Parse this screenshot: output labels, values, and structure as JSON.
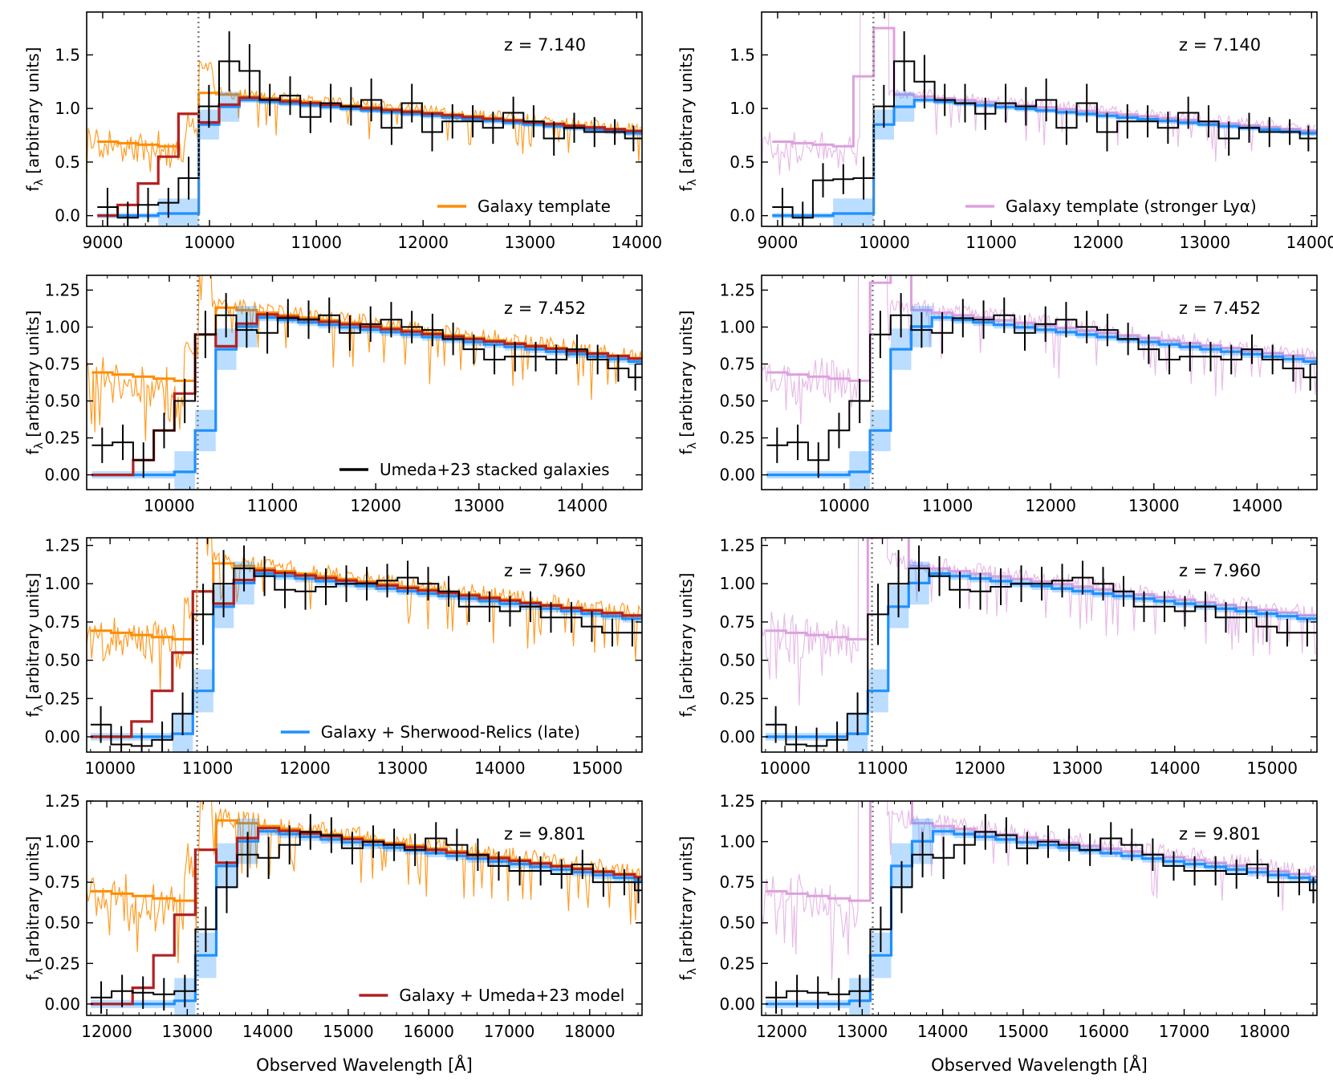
{
  "figure": {
    "ylabel": "f",
    "ylabel_sub": "λ",
    "ylabel_rest": " [arbitrary units]",
    "xlabel": "Observed Wavelength [Å]"
  },
  "colors": {
    "orange": "#ff8c00",
    "pink": "#dda0dd",
    "red": "#b22222",
    "blue": "#1e90ff",
    "blue_band": "#1e90ff",
    "black": "#000000",
    "dotted": "#808080"
  },
  "legends": [
    {
      "label": "Galaxy template",
      "color": "#ff8c00"
    },
    {
      "label": "Galaxy template (stronger Lyα)",
      "color": "#dda0dd"
    },
    {
      "label": "Umeda+23 stacked galaxies",
      "color": "#000000"
    },
    {
      "label": "Galaxy + Sherwood-Relics (late)",
      "color": "#1e90ff"
    },
    {
      "label": "Galaxy + Umeda+23 model",
      "color": "#b22222"
    }
  ],
  "chart_data": [
    {
      "type": "line",
      "row": 0,
      "col": 0,
      "redshift_label": "z = 7.140",
      "z": 7.14,
      "template": "orange",
      "show_red": true,
      "legend": 0,
      "xlim": [
        8850,
        14050
      ],
      "ylim": [
        -0.1,
        1.9
      ],
      "xticks": [
        9000,
        10000,
        11000,
        12000,
        13000,
        14000
      ],
      "xtick_labels": [
        "9000",
        "10000",
        "11000",
        "12000",
        "13000",
        "14000"
      ],
      "yticks": [
        0.0,
        0.5,
        1.0,
        1.5
      ],
      "ytick_labels": [
        "0.0",
        "0.5",
        "1.0",
        "1.5"
      ],
      "lya": 9897,
      "obs": {
        "x": [
          8950,
          9140,
          9330,
          9520,
          9710,
          9900,
          10090,
          10280,
          10470,
          10660,
          10850,
          11040,
          11230,
          11420,
          11610,
          11800,
          11990,
          12180,
          12370,
          12560,
          12750,
          12940,
          13130,
          13320,
          13510,
          13700,
          13890,
          14050
        ],
        "y": [
          0.08,
          -0.02,
          0.1,
          0.12,
          0.35,
          1.02,
          1.44,
          1.35,
          1.08,
          1.12,
          0.92,
          1.05,
          1.02,
          1.08,
          0.82,
          1.05,
          0.78,
          0.88,
          0.88,
          0.82,
          0.96,
          0.88,
          0.72,
          0.82,
          0.78,
          0.78,
          0.72,
          0.72
        ],
        "err": [
          0.18,
          0.15,
          0.16,
          0.14,
          0.2,
          0.2,
          0.28,
          0.25,
          0.15,
          0.18,
          0.15,
          0.18,
          0.18,
          0.2,
          0.16,
          0.18,
          0.18,
          0.16,
          0.15,
          0.15,
          0.15,
          0.15,
          0.16,
          0.14,
          0.14,
          0.12,
          0.12,
          0.12
        ]
      }
    },
    {
      "type": "line",
      "row": 0,
      "col": 1,
      "redshift_label": "z = 7.140",
      "z": 7.14,
      "template": "pink",
      "show_red": false,
      "legend": 1,
      "xlim": [
        8850,
        14050
      ],
      "ylim": [
        -0.1,
        1.9
      ],
      "xticks": [
        9000,
        10000,
        11000,
        12000,
        13000,
        14000
      ],
      "xtick_labels": [
        "9000",
        "10000",
        "11000",
        "12000",
        "13000",
        "14000"
      ],
      "yticks": [
        0.0,
        0.5,
        1.0,
        1.5
      ],
      "ytick_labels": [
        "0.0",
        "0.5",
        "1.0",
        "1.5"
      ],
      "lya": 9897,
      "obs": {
        "x": [
          8950,
          9140,
          9330,
          9520,
          9710,
          9900,
          10090,
          10280,
          10470,
          10660,
          10850,
          11040,
          11230,
          11420,
          11610,
          11800,
          11990,
          12180,
          12370,
          12560,
          12750,
          12940,
          13130,
          13320,
          13510,
          13700,
          13890,
          14050
        ],
        "y": [
          0.08,
          -0.02,
          0.33,
          0.34,
          0.35,
          1.02,
          1.44,
          1.25,
          1.08,
          1.05,
          0.95,
          1.05,
          1.02,
          1.08,
          0.82,
          1.05,
          0.78,
          0.88,
          0.88,
          0.82,
          0.96,
          0.88,
          0.72,
          0.82,
          0.78,
          0.78,
          0.72,
          0.72
        ],
        "err": [
          0.18,
          0.15,
          0.16,
          0.14,
          0.2,
          0.2,
          0.28,
          0.25,
          0.15,
          0.18,
          0.15,
          0.18,
          0.18,
          0.2,
          0.16,
          0.18,
          0.18,
          0.16,
          0.15,
          0.15,
          0.15,
          0.15,
          0.16,
          0.14,
          0.14,
          0.12,
          0.12,
          0.12
        ]
      }
    },
    {
      "type": "line",
      "row": 1,
      "col": 0,
      "redshift_label": "z = 7.452",
      "z": 7.452,
      "template": "orange",
      "show_red": true,
      "legend": 2,
      "xlim": [
        9200,
        14580
      ],
      "ylim": [
        -0.1,
        1.35
      ],
      "xticks": [
        10000,
        11000,
        12000,
        13000,
        14000
      ],
      "xtick_labels": [
        "10000",
        "11000",
        "12000",
        "13000",
        "14000"
      ],
      "yticks": [
        0.0,
        0.25,
        0.5,
        0.75,
        1.0,
        1.25
      ],
      "ytick_labels": [
        "0.00",
        "0.25",
        "0.50",
        "0.75",
        "1.00",
        "1.25"
      ],
      "lya": 10276,
      "obs": {
        "x": [
          9250,
          9450,
          9650,
          9850,
          10050,
          10250,
          10450,
          10650,
          10850,
          11050,
          11250,
          11450,
          11650,
          11850,
          12050,
          12250,
          12450,
          12650,
          12850,
          13050,
          13250,
          13450,
          13650,
          13850,
          14050,
          14250,
          14450,
          14580
        ],
        "y": [
          0.2,
          0.22,
          0.1,
          0.3,
          0.5,
          0.95,
          1.08,
          0.98,
          0.96,
          1.06,
          1.05,
          1.08,
          0.96,
          1.02,
          1.05,
          1.0,
          0.98,
          0.92,
          0.85,
          0.78,
          0.8,
          0.8,
          0.78,
          0.85,
          0.78,
          0.72,
          0.66,
          0.66
        ],
        "err": [
          0.12,
          0.12,
          0.12,
          0.12,
          0.15,
          0.16,
          0.15,
          0.12,
          0.14,
          0.13,
          0.13,
          0.12,
          0.12,
          0.12,
          0.12,
          0.11,
          0.11,
          0.11,
          0.1,
          0.1,
          0.1,
          0.1,
          0.1,
          0.1,
          0.1,
          0.09,
          0.09,
          0.09
        ]
      }
    },
    {
      "type": "line",
      "row": 1,
      "col": 1,
      "redshift_label": "z = 7.452",
      "z": 7.452,
      "template": "pink",
      "show_red": false,
      "legend": -1,
      "xlim": [
        9200,
        14580
      ],
      "ylim": [
        -0.1,
        1.35
      ],
      "xticks": [
        10000,
        11000,
        12000,
        13000,
        14000
      ],
      "xtick_labels": [
        "10000",
        "11000",
        "12000",
        "13000",
        "14000"
      ],
      "yticks": [
        0.0,
        0.25,
        0.5,
        0.75,
        1.0,
        1.25
      ],
      "ytick_labels": [
        "0.00",
        "0.25",
        "0.50",
        "0.75",
        "1.00",
        "1.25"
      ],
      "lya": 10276,
      "obs": {
        "x": [
          9250,
          9450,
          9650,
          9850,
          10050,
          10250,
          10450,
          10650,
          10850,
          11050,
          11250,
          11450,
          11650,
          11850,
          12050,
          12250,
          12450,
          12650,
          12850,
          13050,
          13250,
          13450,
          13650,
          13850,
          14050,
          14250,
          14450,
          14580
        ],
        "y": [
          0.2,
          0.22,
          0.1,
          0.3,
          0.5,
          0.95,
          1.08,
          0.98,
          0.96,
          1.06,
          1.05,
          1.08,
          0.96,
          1.02,
          1.05,
          1.0,
          0.98,
          0.92,
          0.85,
          0.78,
          0.8,
          0.8,
          0.78,
          0.85,
          0.78,
          0.72,
          0.66,
          0.66
        ],
        "err": [
          0.12,
          0.12,
          0.12,
          0.12,
          0.15,
          0.16,
          0.15,
          0.12,
          0.14,
          0.13,
          0.13,
          0.12,
          0.12,
          0.12,
          0.12,
          0.11,
          0.11,
          0.11,
          0.1,
          0.1,
          0.1,
          0.1,
          0.1,
          0.1,
          0.1,
          0.09,
          0.09,
          0.09
        ]
      }
    },
    {
      "type": "line",
      "row": 2,
      "col": 0,
      "redshift_label": "z = 7.960",
      "z": 7.96,
      "template": "orange",
      "show_red": true,
      "legend": 3,
      "xlim": [
        9760,
        15460
      ],
      "ylim": [
        -0.1,
        1.3
      ],
      "xticks": [
        10000,
        11000,
        12000,
        13000,
        14000,
        15000
      ],
      "xtick_labels": [
        "10000",
        "11000",
        "12000",
        "13000",
        "14000",
        "15000"
      ],
      "yticks": [
        0.0,
        0.25,
        0.5,
        0.75,
        1.0,
        1.25
      ],
      "ytick_labels": [
        "0.00",
        "0.25",
        "0.50",
        "0.75",
        "1.00",
        "1.25"
      ],
      "lya": 10893,
      "obs": {
        "x": [
          9800,
          10010,
          10220,
          10430,
          10640,
          10850,
          11060,
          11270,
          11480,
          11690,
          11900,
          12110,
          12320,
          12530,
          12740,
          12950,
          13160,
          13370,
          13580,
          13790,
          14000,
          14210,
          14420,
          14630,
          14840,
          15050,
          15260,
          15460
        ],
        "y": [
          0.08,
          -0.05,
          -0.06,
          -0.02,
          0.15,
          0.8,
          1.0,
          1.1,
          1.05,
          0.96,
          0.95,
          0.98,
          1.0,
          1.0,
          1.02,
          1.04,
          1.0,
          0.95,
          0.85,
          0.85,
          0.82,
          0.85,
          0.78,
          0.78,
          0.72,
          0.68,
          0.68,
          0.68
        ],
        "err": [
          0.12,
          0.12,
          0.12,
          0.12,
          0.14,
          0.2,
          0.22,
          0.15,
          0.13,
          0.12,
          0.12,
          0.12,
          0.12,
          0.11,
          0.11,
          0.11,
          0.11,
          0.1,
          0.1,
          0.1,
          0.1,
          0.1,
          0.1,
          0.1,
          0.1,
          0.09,
          0.09,
          0.09
        ]
      }
    },
    {
      "type": "line",
      "row": 2,
      "col": 1,
      "redshift_label": "z = 7.960",
      "z": 7.96,
      "template": "pink",
      "show_red": false,
      "legend": -1,
      "xlim": [
        9760,
        15460
      ],
      "ylim": [
        -0.1,
        1.3
      ],
      "xticks": [
        10000,
        11000,
        12000,
        13000,
        14000,
        15000
      ],
      "xtick_labels": [
        "10000",
        "11000",
        "12000",
        "13000",
        "14000",
        "15000"
      ],
      "yticks": [
        0.0,
        0.25,
        0.5,
        0.75,
        1.0,
        1.25
      ],
      "ytick_labels": [
        "0.00",
        "0.25",
        "0.50",
        "0.75",
        "1.00",
        "1.25"
      ],
      "lya": 10893,
      "obs": {
        "x": [
          9800,
          10010,
          10220,
          10430,
          10640,
          10850,
          11060,
          11270,
          11480,
          11690,
          11900,
          12110,
          12320,
          12530,
          12740,
          12950,
          13160,
          13370,
          13580,
          13790,
          14000,
          14210,
          14420,
          14630,
          14840,
          15050,
          15260,
          15460
        ],
        "y": [
          0.08,
          -0.05,
          -0.06,
          -0.02,
          0.15,
          0.8,
          1.0,
          1.1,
          1.05,
          0.96,
          0.95,
          0.98,
          1.0,
          1.0,
          1.02,
          1.04,
          1.0,
          0.95,
          0.85,
          0.85,
          0.82,
          0.85,
          0.78,
          0.78,
          0.72,
          0.68,
          0.68,
          0.68
        ],
        "err": [
          0.12,
          0.12,
          0.12,
          0.12,
          0.14,
          0.2,
          0.22,
          0.15,
          0.13,
          0.12,
          0.12,
          0.12,
          0.12,
          0.11,
          0.11,
          0.11,
          0.11,
          0.1,
          0.1,
          0.1,
          0.1,
          0.1,
          0.1,
          0.1,
          0.1,
          0.09,
          0.09,
          0.09
        ]
      }
    },
    {
      "type": "line",
      "row": 3,
      "col": 0,
      "redshift_label": "z = 9.801",
      "z": 9.801,
      "template": "orange",
      "show_red": true,
      "legend": 4,
      "xlim": [
        11750,
        18650
      ],
      "ylim": [
        -0.07,
        1.25
      ],
      "xticks": [
        12000,
        13000,
        14000,
        15000,
        16000,
        17000,
        18000
      ],
      "xtick_labels": [
        "12000",
        "13000",
        "14000",
        "15000",
        "16000",
        "17000",
        "18000"
      ],
      "yticks": [
        0.0,
        0.25,
        0.5,
        0.75,
        1.0,
        1.25
      ],
      "ytick_labels": [
        "0.00",
        "0.25",
        "0.50",
        "0.75",
        "1.00",
        "1.25"
      ],
      "lya": 13131,
      "obs": {
        "x": [
          11800,
          12060,
          12320,
          12580,
          12840,
          13100,
          13360,
          13620,
          13880,
          14140,
          14400,
          14660,
          14920,
          15180,
          15440,
          15700,
          15960,
          16220,
          16480,
          16740,
          17000,
          17260,
          17520,
          17780,
          18040,
          18300,
          18560,
          18650
        ],
        "y": [
          0.04,
          0.08,
          0.07,
          0.06,
          0.08,
          0.46,
          0.72,
          0.92,
          0.9,
          0.98,
          1.06,
          1.04,
          0.96,
          1.0,
          0.98,
          0.95,
          1.02,
          0.98,
          0.92,
          0.85,
          0.82,
          0.82,
          0.8,
          0.86,
          0.75,
          0.75,
          0.7,
          0.7
        ],
        "err": [
          0.1,
          0.1,
          0.1,
          0.1,
          0.1,
          0.14,
          0.16,
          0.14,
          0.13,
          0.12,
          0.11,
          0.11,
          0.1,
          0.1,
          0.1,
          0.1,
          0.1,
          0.1,
          0.1,
          0.09,
          0.09,
          0.09,
          0.09,
          0.09,
          0.09,
          0.08,
          0.08,
          0.08
        ]
      }
    },
    {
      "type": "line",
      "row": 3,
      "col": 1,
      "redshift_label": "z = 9.801",
      "z": 9.801,
      "template": "pink",
      "show_red": false,
      "legend": -1,
      "xlim": [
        11750,
        18650
      ],
      "ylim": [
        -0.07,
        1.25
      ],
      "xticks": [
        12000,
        13000,
        14000,
        15000,
        16000,
        17000,
        18000
      ],
      "xtick_labels": [
        "12000",
        "13000",
        "14000",
        "15000",
        "16000",
        "17000",
        "18000"
      ],
      "yticks": [
        0.0,
        0.25,
        0.5,
        0.75,
        1.0,
        1.25
      ],
      "ytick_labels": [
        "0.00",
        "0.25",
        "0.50",
        "0.75",
        "1.00",
        "1.25"
      ],
      "lya": 13131,
      "obs": {
        "x": [
          11800,
          12060,
          12320,
          12580,
          12840,
          13100,
          13360,
          13620,
          13880,
          14140,
          14400,
          14660,
          14920,
          15180,
          15440,
          15700,
          15960,
          16220,
          16480,
          16740,
          17000,
          17260,
          17520,
          17780,
          18040,
          18300,
          18560,
          18650
        ],
        "y": [
          0.04,
          0.08,
          0.07,
          0.06,
          0.08,
          0.46,
          0.72,
          0.92,
          0.9,
          0.98,
          1.06,
          1.04,
          0.96,
          1.0,
          0.98,
          0.95,
          1.02,
          0.98,
          0.92,
          0.85,
          0.82,
          0.82,
          0.8,
          0.86,
          0.75,
          0.75,
          0.7,
          0.7
        ],
        "err": [
          0.1,
          0.1,
          0.1,
          0.1,
          0.1,
          0.14,
          0.16,
          0.14,
          0.13,
          0.12,
          0.11,
          0.11,
          0.1,
          0.1,
          0.1,
          0.1,
          0.1,
          0.1,
          0.1,
          0.09,
          0.09,
          0.09,
          0.09,
          0.09,
          0.09,
          0.08,
          0.08,
          0.08
        ]
      }
    }
  ]
}
